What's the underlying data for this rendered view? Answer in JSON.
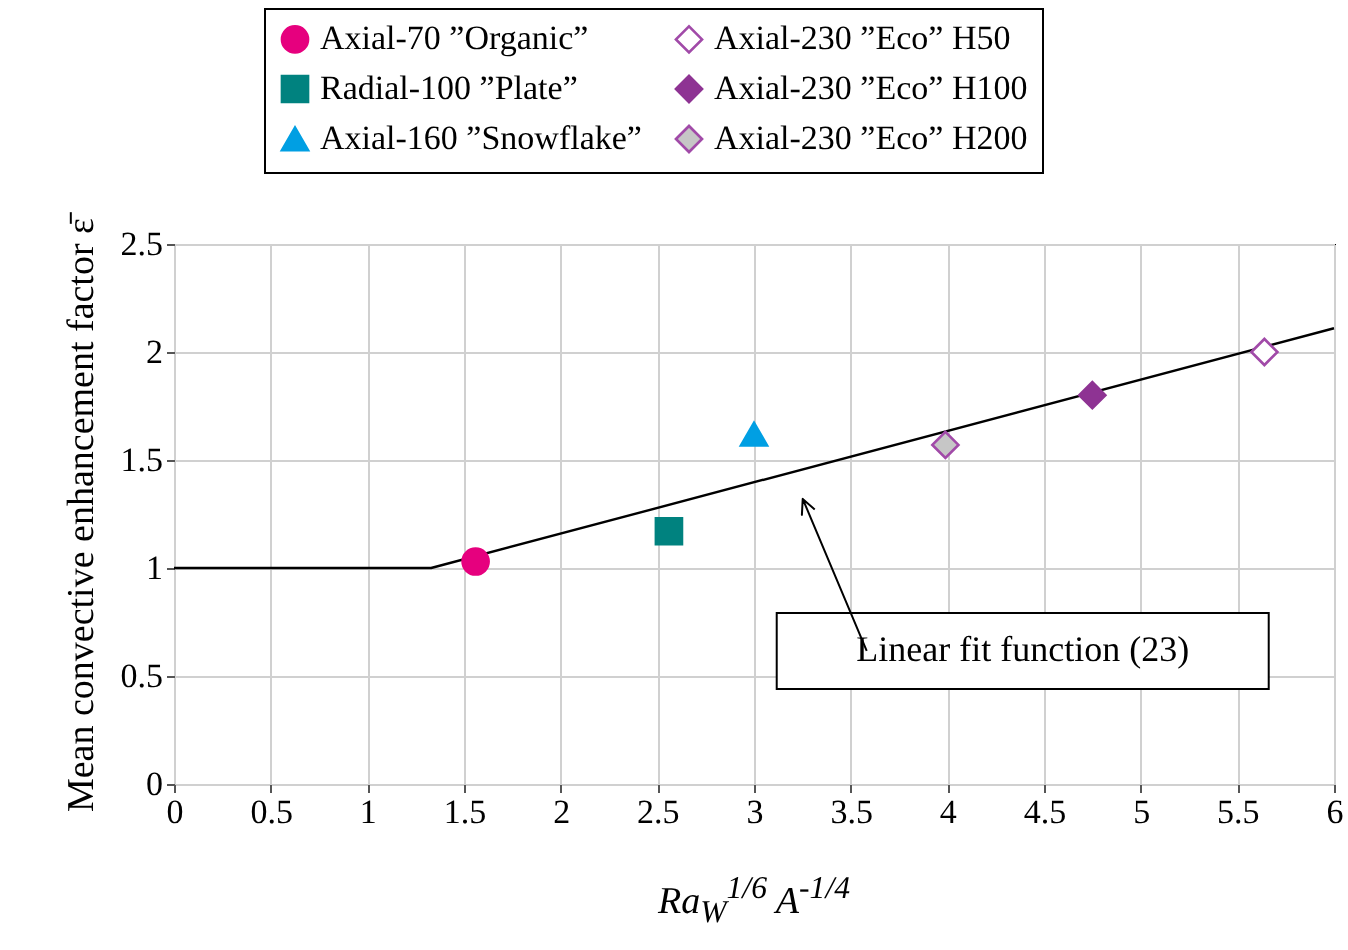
{
  "chart_data": {
    "type": "scatter",
    "ylabel": "Mean convective enhancement factor ε̄",
    "xlabel": "Ra$_{W}$$^{1/6}$ A$^{-1/4}$",
    "xlim": [
      0,
      6
    ],
    "ylim": [
      0,
      2.5
    ],
    "xticks": [
      0,
      0.5,
      1,
      1.5,
      2,
      2.5,
      3,
      3.5,
      4,
      4.5,
      5,
      5.5,
      6
    ],
    "yticks": [
      0,
      0.5,
      1,
      1.5,
      2,
      2.5
    ],
    "grid": true,
    "legend": "top",
    "annotations": [
      "Linear fit function (23)"
    ],
    "series": [
      {
        "name": "Axial-70 ”Organic”",
        "color": "#e6007e",
        "marker": "circle",
        "x": [
          1.56
        ],
        "values": [
          1.03
        ]
      },
      {
        "name": "Radial-100 ”Plate”",
        "color": "#00827f",
        "marker": "square",
        "x": [
          2.56
        ],
        "values": [
          1.17
        ]
      },
      {
        "name": "Axial-160 ”Snowflake”",
        "color": "#009fe3",
        "marker": "triangle",
        "x": [
          3.0
        ],
        "values": [
          1.62
        ]
      },
      {
        "name": "Axial-230 ”Eco” H50",
        "color": "#ffffff",
        "marker": "diamond",
        "x": [
          5.64
        ],
        "values": [
          2.0
        ]
      },
      {
        "name": "Axial-230 ”Eco” H100",
        "color": "#8e3393",
        "marker": "diamond",
        "x": [
          4.75
        ],
        "values": [
          1.8
        ]
      },
      {
        "name": "Axial-230 ”Eco” H200",
        "color": "#c6c6c6",
        "marker": "diamond",
        "x": [
          3.99
        ],
        "values": [
          1.57
        ]
      },
      {
        "type": "line",
        "color": "#000000",
        "marker": "none",
        "x": [
          0,
          1.33,
          6
        ],
        "values": [
          1,
          1,
          2.11
        ]
      }
    ]
  }
}
